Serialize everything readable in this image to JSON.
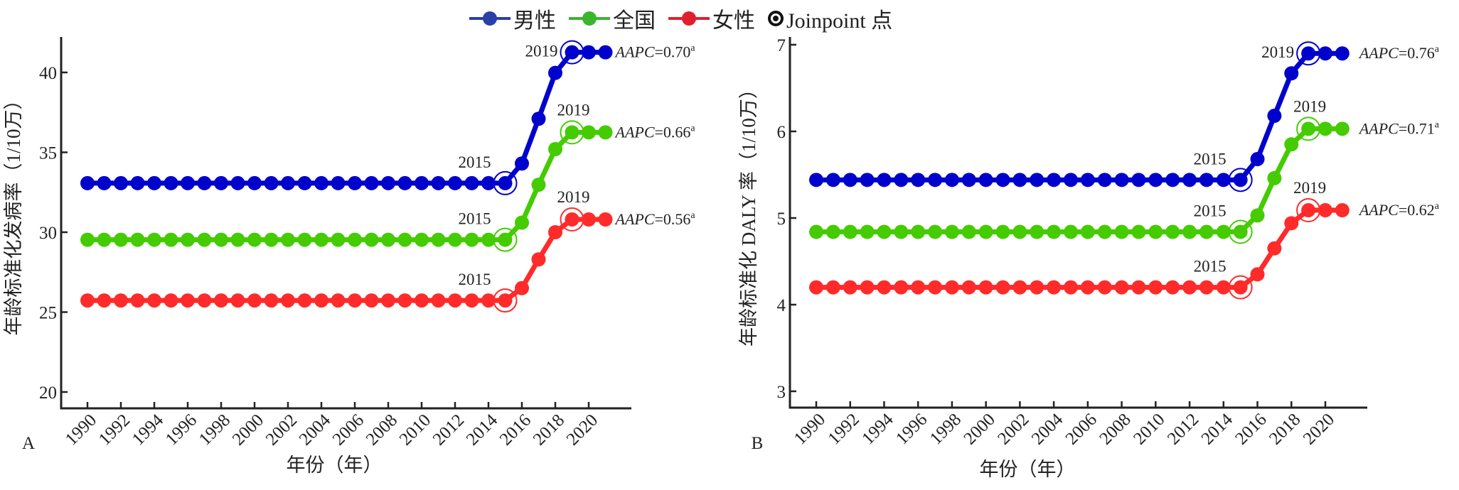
{
  "legend": {
    "items": [
      {
        "label": "男性",
        "color": "#0000cc",
        "line_color": "#2b3fa8"
      },
      {
        "label": "全国",
        "color": "#44cc00",
        "line_color": "#3bb52e"
      },
      {
        "label": "女性",
        "color": "#ff2a2a",
        "line_color": "#e0202e"
      }
    ],
    "joinpoint_label": "Joinpoint 点"
  },
  "chart_data": [
    {
      "type": "line",
      "panel": "A",
      "title": "",
      "xlabel": "年份（年）",
      "ylabel": "年龄标准化发病率（1/10万）",
      "ylim": [
        19,
        42.5
      ],
      "yticks": [
        20,
        25,
        30,
        35,
        40
      ],
      "xlim": [
        1987.7,
        2023.5
      ],
      "xticks": [
        1990,
        1992,
        1994,
        1996,
        1998,
        2000,
        2002,
        2004,
        2006,
        2008,
        2010,
        2012,
        2014,
        2016,
        2018,
        2020
      ],
      "x": [
        1990,
        1991,
        1992,
        1993,
        1994,
        1995,
        1996,
        1997,
        1998,
        1999,
        2000,
        2001,
        2002,
        2003,
        2004,
        2005,
        2006,
        2007,
        2008,
        2009,
        2010,
        2011,
        2012,
        2013,
        2014,
        2015,
        2016,
        2017,
        2018,
        2019,
        2020,
        2021
      ],
      "grid": false,
      "legend_position": "top",
      "series": [
        {
          "name": "男性",
          "color": "#0000cc",
          "values": [
            33.07,
            33.07,
            33.07,
            33.07,
            33.07,
            33.07,
            33.07,
            33.07,
            33.07,
            33.07,
            33.07,
            33.07,
            33.07,
            33.07,
            33.07,
            33.07,
            33.07,
            33.07,
            33.07,
            33.07,
            33.07,
            33.07,
            33.07,
            33.07,
            33.07,
            33.07,
            34.3,
            37.1,
            39.97,
            41.26,
            41.26,
            41.26
          ],
          "joinpoints": [
            2015,
            2019
          ],
          "aapc_label": "AAPC",
          "aapc_value": "=0.70",
          "aapc_sup": "a"
        },
        {
          "name": "全国",
          "color": "#44cc00",
          "values": [
            29.53,
            29.53,
            29.53,
            29.53,
            29.53,
            29.53,
            29.53,
            29.53,
            29.53,
            29.53,
            29.53,
            29.53,
            29.53,
            29.53,
            29.53,
            29.53,
            29.53,
            29.53,
            29.53,
            29.53,
            29.53,
            29.53,
            29.53,
            29.53,
            29.53,
            29.53,
            30.6,
            32.97,
            35.2,
            36.25,
            36.25,
            36.25
          ],
          "joinpoints": [
            2015,
            2019
          ],
          "aapc_label": "AAPC",
          "aapc_value": "=0.66",
          "aapc_sup": "a"
        },
        {
          "name": "女性",
          "color": "#ff2a2a",
          "values": [
            25.73,
            25.73,
            25.73,
            25.73,
            25.73,
            25.73,
            25.73,
            25.73,
            25.73,
            25.73,
            25.73,
            25.73,
            25.73,
            25.73,
            25.73,
            25.73,
            25.73,
            25.73,
            25.73,
            25.73,
            25.73,
            25.73,
            25.73,
            25.73,
            25.73,
            25.73,
            26.5,
            28.3,
            30.0,
            30.8,
            30.8,
            30.8
          ],
          "joinpoints": [
            2015,
            2019
          ],
          "aapc_label": "AAPC",
          "aapc_value": "=0.56",
          "aapc_sup": "a"
        }
      ]
    },
    {
      "type": "line",
      "panel": "B",
      "title": "",
      "xlabel": "年份（年）",
      "ylabel": "年龄标准化 DALY 率（1/10万）",
      "ylim": [
        2.81,
        7.1
      ],
      "yticks": [
        3,
        4,
        5,
        6,
        7
      ],
      "xlim": [
        1987.3,
        2022.4
      ],
      "xticks": [
        1990,
        1992,
        1994,
        1996,
        1998,
        2000,
        2002,
        2004,
        2006,
        2008,
        2010,
        2012,
        2014,
        2016,
        2018,
        2020
      ],
      "x": [
        1990,
        1991,
        1992,
        1993,
        1994,
        1995,
        1996,
        1997,
        1998,
        1999,
        2000,
        2001,
        2002,
        2003,
        2004,
        2005,
        2006,
        2007,
        2008,
        2009,
        2010,
        2011,
        2012,
        2013,
        2014,
        2015,
        2016,
        2017,
        2018,
        2019,
        2020,
        2021
      ],
      "grid": false,
      "legend_position": "top",
      "series": [
        {
          "name": "男性",
          "color": "#0000cc",
          "values": [
            5.44,
            5.44,
            5.44,
            5.44,
            5.44,
            5.44,
            5.44,
            5.44,
            5.44,
            5.44,
            5.44,
            5.44,
            5.44,
            5.44,
            5.44,
            5.44,
            5.44,
            5.44,
            5.44,
            5.44,
            5.44,
            5.44,
            5.44,
            5.44,
            5.44,
            5.44,
            5.68,
            6.18,
            6.67,
            6.9,
            6.9,
            6.9
          ],
          "joinpoints": [
            2015,
            2019
          ],
          "aapc_label": "AAPC",
          "aapc_value": "=0.76",
          "aapc_sup": "a"
        },
        {
          "name": "全国",
          "color": "#44cc00",
          "values": [
            4.84,
            4.84,
            4.84,
            4.84,
            4.84,
            4.84,
            4.84,
            4.84,
            4.84,
            4.84,
            4.84,
            4.84,
            4.84,
            4.84,
            4.84,
            4.84,
            4.84,
            4.84,
            4.84,
            4.84,
            4.84,
            4.84,
            4.84,
            4.84,
            4.84,
            4.84,
            5.03,
            5.46,
            5.85,
            6.03,
            6.03,
            6.03
          ],
          "joinpoints": [
            2015,
            2019
          ],
          "aapc_label": "AAPC",
          "aapc_value": "=0.71",
          "aapc_sup": "a"
        },
        {
          "name": "女性",
          "color": "#ff2a2a",
          "values": [
            4.2,
            4.2,
            4.2,
            4.2,
            4.2,
            4.2,
            4.2,
            4.2,
            4.2,
            4.2,
            4.2,
            4.2,
            4.2,
            4.2,
            4.2,
            4.2,
            4.2,
            4.2,
            4.2,
            4.2,
            4.2,
            4.2,
            4.2,
            4.2,
            4.2,
            4.2,
            4.35,
            4.65,
            4.94,
            5.09,
            5.09,
            5.09
          ],
          "joinpoints": [
            2015,
            2019
          ],
          "aapc_label": "AAPC",
          "aapc_value": "=0.62",
          "aapc_sup": "a"
        }
      ]
    }
  ]
}
